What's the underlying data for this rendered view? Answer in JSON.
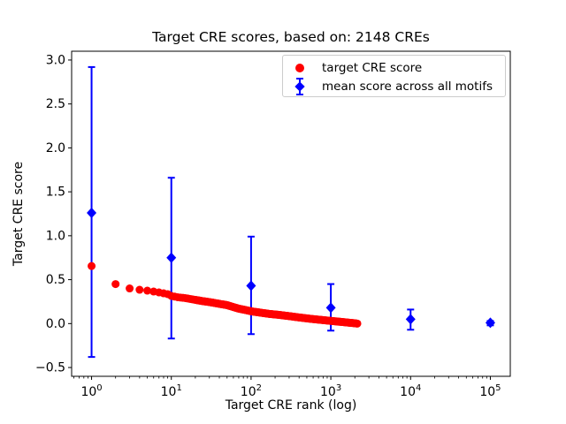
{
  "chart_data": {
    "type": "scatter",
    "title": "Target CRE scores, based on: 2148 CREs",
    "xlabel": "Target CRE rank (log)",
    "ylabel": "Target CRE score",
    "x_scale": "log",
    "xlim_log10": [
      -0.25,
      5.25
    ],
    "ylim": [
      -0.6,
      3.1
    ],
    "xticks": [
      1,
      10,
      100,
      1000,
      10000,
      100000
    ],
    "yticks": [
      -0.5,
      0.0,
      0.5,
      1.0,
      1.5,
      2.0,
      2.5,
      3.0
    ],
    "grid": false,
    "legend_position": "upper right",
    "series": [
      {
        "name": "target CRE score",
        "kind": "scatter",
        "marker": "circle",
        "color": "#ff0000",
        "n_points": 2148,
        "rank_range": [
          1,
          2148
        ],
        "anchors": [
          [
            1,
            0.655
          ],
          [
            2,
            0.45
          ],
          [
            3,
            0.4
          ],
          [
            4,
            0.385
          ],
          [
            5,
            0.375
          ],
          [
            6,
            0.365
          ],
          [
            7,
            0.355
          ],
          [
            8,
            0.345
          ],
          [
            9,
            0.335
          ],
          [
            10,
            0.315
          ],
          [
            12,
            0.3
          ],
          [
            15,
            0.29
          ],
          [
            20,
            0.27
          ],
          [
            25,
            0.255
          ],
          [
            30,
            0.245
          ],
          [
            40,
            0.225
          ],
          [
            50,
            0.21
          ],
          [
            70,
            0.17
          ],
          [
            85,
            0.155
          ],
          [
            100,
            0.14
          ],
          [
            130,
            0.125
          ],
          [
            170,
            0.11
          ],
          [
            220,
            0.1
          ],
          [
            300,
            0.085
          ],
          [
            400,
            0.07
          ],
          [
            550,
            0.055
          ],
          [
            700,
            0.045
          ],
          [
            900,
            0.035
          ],
          [
            1100,
            0.027
          ],
          [
            1400,
            0.018
          ],
          [
            1700,
            0.01
          ],
          [
            2000,
            0.004
          ],
          [
            2148,
            0.0
          ]
        ]
      },
      {
        "name": "mean score across all motifs",
        "kind": "errorbar",
        "marker": "diamond",
        "color": "#0000ff",
        "points": [
          {
            "x": 1,
            "mean": 1.26,
            "lo": -0.38,
            "hi": 2.92
          },
          {
            "x": 10,
            "mean": 0.75,
            "lo": -0.17,
            "hi": 1.66
          },
          {
            "x": 100,
            "mean": 0.43,
            "lo": -0.12,
            "hi": 0.99
          },
          {
            "x": 1000,
            "mean": 0.18,
            "lo": -0.08,
            "hi": 0.45
          },
          {
            "x": 10000,
            "mean": 0.05,
            "lo": -0.07,
            "hi": 0.16
          },
          {
            "x": 100000,
            "mean": 0.01,
            "lo": -0.02,
            "hi": 0.03
          }
        ]
      }
    ]
  },
  "legend": {
    "items": [
      {
        "label": "target CRE score",
        "marker": "red-circle"
      },
      {
        "label": "mean score across all motifs",
        "marker": "blue-diamond-errorbar"
      }
    ]
  }
}
